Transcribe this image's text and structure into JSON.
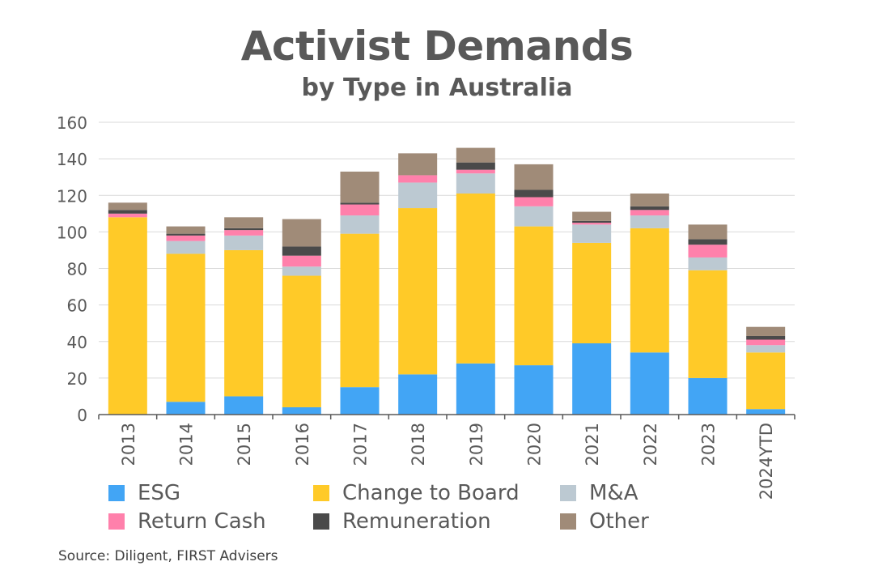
{
  "title": "Activist Demands",
  "subtitle": "by Type in Australia",
  "source": "Source: Diligent, FIRST Advisers",
  "chart_data": {
    "type": "bar",
    "stacked": true,
    "title": "Activist Demands",
    "subtitle": "by Type in Australia",
    "xlabel": "",
    "ylabel": "",
    "ylim": [
      0,
      160
    ],
    "yticks": [
      0,
      20,
      40,
      60,
      80,
      100,
      120,
      140,
      160
    ],
    "grid": true,
    "legend_position": "bottom",
    "categories": [
      "2013",
      "2014",
      "2015",
      "2016",
      "2017",
      "2018",
      "2019",
      "2020",
      "2021",
      "2022",
      "2023",
      "2024YTD"
    ],
    "series": [
      {
        "name": "ESG",
        "color": "#42A5F5",
        "values": [
          0,
          7,
          10,
          4,
          15,
          22,
          28,
          27,
          39,
          34,
          20,
          3
        ]
      },
      {
        "name": "Change to Board",
        "color": "#FFCA28",
        "values": [
          108,
          81,
          80,
          72,
          84,
          91,
          93,
          76,
          55,
          68,
          59,
          31
        ]
      },
      {
        "name": "M&A",
        "color": "#BCC9D2",
        "values": [
          0,
          7,
          8,
          5,
          10,
          14,
          11,
          11,
          10,
          7,
          7,
          4
        ]
      },
      {
        "name": "Return Cash",
        "color": "#FF80AB",
        "values": [
          2,
          3,
          3,
          6,
          6,
          4,
          2,
          5,
          1,
          3,
          7,
          3
        ]
      },
      {
        "name": "Remuneration",
        "color": "#4A4A4A",
        "values": [
          2,
          1,
          1,
          5,
          1,
          0,
          4,
          4,
          1,
          2,
          3,
          2
        ]
      },
      {
        "name": "Other",
        "color": "#A08B78",
        "values": [
          4,
          4,
          6,
          15,
          17,
          12,
          8,
          14,
          5,
          7,
          8,
          5
        ]
      }
    ]
  }
}
